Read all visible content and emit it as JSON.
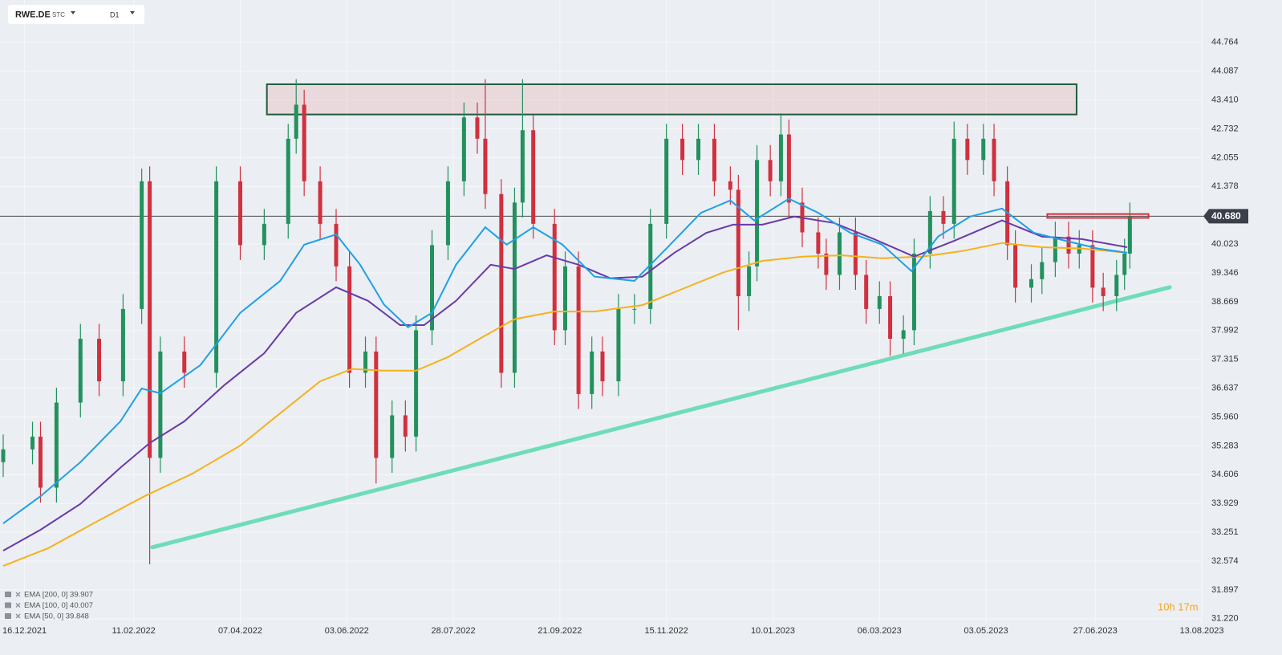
{
  "header": {
    "symbol": "RWE.DE",
    "market": "STC",
    "interval": "D1"
  },
  "countdown": "10h 17m",
  "chart_data": {
    "type": "candlestick",
    "xlim": [
      0,
      450
    ],
    "ylim": [
      30.67,
      45.76
    ],
    "xticks": [
      {
        "value": 8,
        "label": "16.12.2021"
      },
      {
        "value": 49,
        "label": "11.02.2022"
      },
      {
        "value": 89,
        "label": "07.04.2022"
      },
      {
        "value": 129,
        "label": "03.06.2022"
      },
      {
        "value": 169,
        "label": "28.07.2022"
      },
      {
        "value": 209,
        "label": "21.09.2022"
      },
      {
        "value": 249,
        "label": "15.11.2022"
      },
      {
        "value": 289,
        "label": "10.01.2023"
      },
      {
        "value": 329,
        "label": "06.03.2023"
      },
      {
        "value": 369,
        "label": "03.05.2023"
      },
      {
        "value": 410,
        "label": "27.06.2023"
      },
      {
        "value": 450,
        "label": "13.08.2023"
      }
    ],
    "yticks": [
      44.764,
      44.087,
      {
        "value": 43.41,
        "label": "43.410"
      },
      42.732,
      42.055,
      41.378,
      40.023,
      39.346,
      38.669,
      37.992,
      37.315,
      36.637,
      {
        "value": 35.96,
        "label": "35.960"
      },
      35.283,
      34.606,
      33.929,
      33.251,
      32.574,
      31.897,
      {
        "value": 31.22,
        "label": "31.220"
      }
    ],
    "grid": true,
    "candles": {
      "up_color": "#22915e",
      "down_color": "#d1303f",
      "x": [
        0,
        11,
        14,
        20,
        29,
        36,
        45,
        52,
        55,
        59,
        68,
        80,
        89,
        98,
        107,
        110,
        113,
        119,
        125,
        130,
        136,
        140,
        146,
        151,
        155,
        161,
        167,
        173,
        178,
        181,
        187,
        192,
        195,
        199,
        207,
        211,
        216,
        221,
        225,
        231,
        237,
        243,
        249,
        255,
        261,
        267,
        273,
        276,
        280,
        283,
        288,
        292,
        295,
        300,
        306,
        309,
        314,
        320,
        324,
        329,
        333,
        338,
        342,
        348,
        353,
        357,
        362,
        368,
        372,
        377,
        380,
        386,
        390,
        395,
        400,
        404,
        409,
        413,
        418,
        421,
        423
      ],
      "open": [
        34.9,
        35.2,
        35.5,
        34.3,
        36.3,
        37.8,
        36.8,
        38.5,
        41.5,
        35.0,
        37.5,
        37.0,
        41.5,
        40.0,
        40.5,
        42.5,
        43.3,
        41.5,
        40.5,
        39.5,
        37.0,
        37.5,
        35.0,
        36.0,
        35.5,
        38.0,
        40.0,
        41.5,
        43.0,
        42.5,
        41.2,
        37.0,
        41.0,
        42.7,
        40.5,
        38.0,
        39.5,
        36.5,
        37.5,
        36.8,
        38.5,
        38.5,
        40.5,
        42.5,
        42.0,
        42.5,
        41.5,
        41.3,
        38.8,
        39.5,
        42.0,
        41.5,
        42.6,
        41.0,
        40.3,
        39.8,
        39.3,
        40.3,
        39.3,
        38.5,
        38.8,
        37.8,
        38.0,
        39.8,
        40.8,
        40.5,
        42.5,
        42.0,
        42.5,
        41.5,
        40.0,
        39.0,
        39.2,
        39.6,
        40.2,
        39.8,
        40.0,
        39.0,
        38.8,
        39.3,
        39.8
      ],
      "high": [
        35.55,
        35.85,
        35.85,
        36.65,
        38.15,
        38.15,
        38.85,
        41.8,
        41.85,
        37.85,
        37.85,
        41.85,
        41.85,
        40.85,
        42.85,
        43.9,
        43.65,
        41.85,
        40.85,
        39.85,
        37.85,
        37.85,
        36.35,
        36.35,
        38.35,
        40.35,
        41.85,
        43.35,
        43.35,
        43.9,
        41.55,
        41.35,
        43.9,
        43.05,
        40.85,
        39.85,
        39.85,
        37.85,
        37.85,
        38.85,
        38.85,
        40.85,
        42.85,
        42.85,
        42.85,
        42.85,
        41.85,
        41.65,
        39.85,
        42.35,
        42.35,
        43.1,
        42.95,
        41.35,
        40.65,
        40.15,
        40.65,
        40.65,
        39.65,
        39.15,
        39.15,
        38.35,
        40.15,
        41.15,
        41.15,
        42.9,
        42.85,
        42.85,
        42.85,
        41.85,
        40.35,
        39.55,
        39.95,
        40.55,
        40.55,
        40.35,
        40.35,
        39.35,
        39.65,
        40.15,
        41.0
      ],
      "low": [
        34.55,
        34.85,
        33.95,
        33.95,
        35.95,
        36.45,
        36.45,
        38.15,
        32.5,
        34.65,
        36.65,
        36.65,
        39.65,
        39.65,
        40.15,
        42.15,
        41.15,
        40.15,
        39.15,
        36.65,
        36.65,
        34.4,
        34.65,
        35.15,
        35.15,
        37.65,
        39.65,
        41.15,
        42.15,
        40.85,
        36.65,
        36.65,
        40.65,
        40.15,
        37.65,
        37.65,
        36.15,
        36.15,
        36.45,
        36.45,
        38.15,
        38.15,
        40.15,
        41.65,
        41.65,
        41.15,
        40.95,
        38.0,
        38.45,
        39.15,
        41.15,
        41.15,
        40.65,
        39.95,
        39.45,
        38.95,
        38.95,
        38.95,
        38.15,
        38.15,
        37.4,
        37.45,
        37.65,
        39.45,
        40.15,
        40.15,
        41.65,
        41.65,
        41.15,
        39.65,
        38.65,
        38.65,
        38.85,
        39.25,
        39.45,
        39.45,
        38.65,
        38.45,
        38.45,
        38.95,
        39.45
      ],
      "close": [
        35.2,
        35.5,
        34.3,
        36.3,
        37.8,
        36.8,
        38.5,
        41.5,
        35.0,
        37.5,
        37.0,
        41.5,
        40.0,
        40.5,
        42.5,
        43.3,
        41.5,
        40.5,
        39.5,
        37.0,
        37.5,
        35.0,
        36.0,
        35.5,
        38.0,
        40.0,
        41.5,
        43.0,
        42.5,
        41.2,
        37.0,
        41.0,
        42.7,
        40.5,
        38.0,
        39.5,
        36.5,
        37.5,
        36.8,
        38.5,
        38.5,
        40.5,
        42.5,
        42.0,
        42.5,
        41.5,
        41.3,
        38.8,
        39.5,
        42.0,
        41.5,
        42.6,
        41.0,
        40.3,
        39.8,
        39.3,
        40.3,
        39.3,
        38.5,
        38.8,
        37.8,
        38.0,
        39.8,
        40.8,
        40.5,
        42.5,
        42.0,
        42.5,
        41.5,
        40.0,
        39.0,
        39.2,
        39.6,
        40.2,
        39.8,
        40.0,
        39.0,
        38.8,
        39.3,
        39.8,
        40.68
      ]
    },
    "series": [
      {
        "name": "EMA [200, 0] 39.907",
        "color": "#f5b21c",
        "x": [
          0,
          17,
          35,
          53,
          71,
          89,
          104,
          119,
          131,
          143,
          155,
          167,
          180,
          192,
          207,
          222,
          240,
          255,
          270,
          285,
          300,
          315,
          330,
          345,
          360,
          375,
          390,
          405,
          422
        ],
        "values": [
          32.46,
          32.88,
          33.5,
          34.1,
          34.63,
          35.29,
          36.05,
          36.8,
          37.09,
          37.05,
          37.05,
          37.37,
          37.84,
          38.26,
          38.44,
          38.44,
          38.59,
          38.97,
          39.35,
          39.63,
          39.73,
          39.76,
          39.69,
          39.73,
          39.86,
          40.05,
          39.95,
          39.92,
          39.82
        ]
      },
      {
        "name": "EMA [100, 0] 40.007",
        "color": "#6a3aa8",
        "x": [
          0,
          14,
          29,
          44,
          55,
          68,
          83,
          98,
          110,
          125,
          137,
          149,
          158,
          170,
          183,
          192,
          204,
          216,
          228,
          240,
          252,
          264,
          274,
          285,
          297,
          312,
          327,
          342,
          357,
          375,
          390,
          405,
          422
        ],
        "values": [
          32.82,
          33.31,
          33.92,
          34.77,
          35.35,
          35.86,
          36.71,
          37.46,
          38.41,
          39.01,
          38.69,
          38.12,
          38.12,
          38.69,
          39.54,
          39.44,
          39.76,
          39.54,
          39.22,
          39.26,
          39.82,
          40.29,
          40.48,
          40.48,
          40.67,
          40.52,
          40.14,
          39.73,
          40.1,
          40.58,
          40.2,
          40.14,
          39.95
        ]
      },
      {
        "name": "EMA [50, 0] 39.848",
        "color": "#1ea0e6",
        "x": [
          0,
          14,
          29,
          44,
          52,
          59,
          74,
          89,
          104,
          113,
          125,
          134,
          143,
          152,
          161,
          170,
          181,
          189,
          199,
          210,
          222,
          237,
          249,
          262,
          273,
          282,
          295,
          306,
          318,
          330,
          341,
          351,
          363,
          375,
          387,
          399,
          411,
          422
        ],
        "values": [
          33.46,
          34.1,
          34.9,
          35.86,
          36.63,
          36.52,
          37.18,
          38.41,
          39.16,
          40.01,
          40.25,
          39.54,
          38.6,
          38.07,
          38.41,
          39.54,
          40.42,
          40.01,
          40.42,
          40.01,
          39.26,
          39.16,
          39.92,
          40.76,
          41.05,
          40.58,
          41.09,
          40.76,
          40.29,
          40.01,
          39.39,
          40.2,
          40.67,
          40.86,
          40.29,
          40.1,
          39.92,
          39.82
        ]
      }
    ],
    "last_price": {
      "value": 40.68,
      "label": "40.680"
    },
    "zone": {
      "x": [
        99,
        403
      ],
      "y": [
        43.07,
        43.78
      ]
    },
    "box": {
      "x": [
        392,
        430
      ],
      "y": [
        40.64,
        40.73
      ]
    },
    "trendline": {
      "x": [
        56,
        438
      ],
      "y": [
        32.9,
        39.01
      ]
    }
  }
}
